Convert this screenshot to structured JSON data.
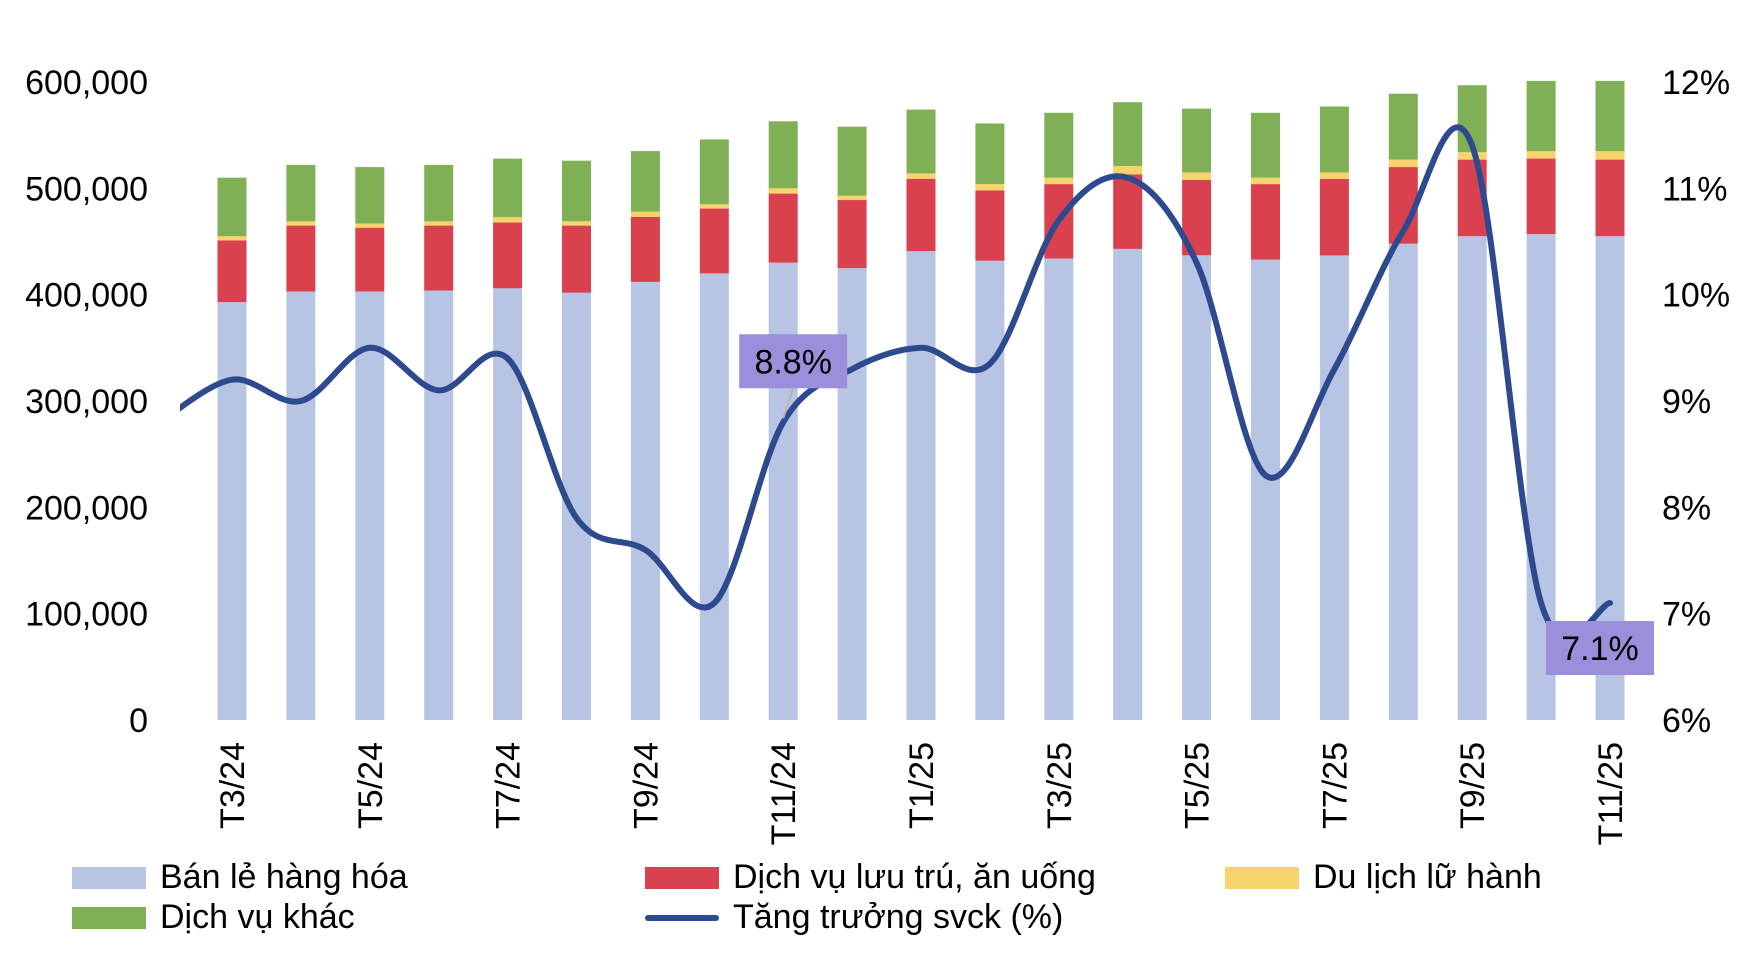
{
  "chart_data": {
    "type": "bar",
    "stacked": true,
    "categories": [
      "T3/24",
      "T4/24",
      "T5/24",
      "T6/24",
      "T7/24",
      "T8/24",
      "T9/24",
      "T10/24",
      "T11/24",
      "T12/24",
      "T1/25",
      "T2/25",
      "T3/25",
      "T4/25",
      "T5/25",
      "T6/25",
      "T7/25",
      "T8/25",
      "T9/25",
      "T10/25",
      "T11/25"
    ],
    "tick_labels": [
      "T3/24",
      "",
      "T5/24",
      "",
      "T7/24",
      "",
      "T9/24",
      "",
      "T11/24",
      "",
      "T1/25",
      "",
      "T3/25",
      "",
      "T5/25",
      "",
      "T7/25",
      "",
      "T9/25",
      "",
      "T11/25"
    ],
    "series": [
      {
        "name": "Bán lẻ hàng hóa",
        "color": "#b8c4e4",
        "values": [
          393000,
          403000,
          403000,
          404000,
          406000,
          402000,
          412000,
          420000,
          430000,
          425000,
          441000,
          432000,
          434000,
          443000,
          437000,
          433000,
          437000,
          448000,
          455000,
          457000,
          455000
        ]
      },
      {
        "name": "Dịch vụ lưu trú, ăn uống",
        "color": "#d9414f",
        "values": [
          58000,
          62000,
          60000,
          61000,
          62000,
          63000,
          61000,
          61000,
          65000,
          64000,
          68000,
          66000,
          70000,
          70000,
          71000,
          71000,
          72000,
          72000,
          72000,
          71000,
          72000
        ]
      },
      {
        "name": "Du lịch lữ hành",
        "color": "#f6d36b",
        "values": [
          4000,
          4000,
          4000,
          4000,
          5000,
          4000,
          5000,
          4000,
          5000,
          4000,
          5000,
          6000,
          6000,
          8000,
          7000,
          6000,
          6000,
          7000,
          7000,
          7000,
          8000
        ]
      },
      {
        "name": "Dịch vụ khác",
        "color": "#7fb055",
        "values": [
          55000,
          53000,
          53000,
          53000,
          55000,
          57000,
          57000,
          61000,
          63000,
          65000,
          60000,
          57000,
          61000,
          60000,
          60000,
          61000,
          62000,
          62000,
          63000,
          66000,
          66000
        ]
      }
    ],
    "line_series": {
      "name": "Tăng trưởng svck (%)",
      "color": "#2e4a8e",
      "values": [
        9.2,
        9.0,
        9.5,
        9.1,
        9.4,
        7.9,
        7.6,
        7.1,
        8.8,
        9.3,
        9.5,
        9.35,
        10.7,
        11.1,
        10.3,
        8.3,
        9.3,
        10.6,
        11.4,
        7.1,
        7.1
      ],
      "start_value": 8.8
    },
    "annotations": [
      {
        "label": "8.8%",
        "category": "T11/24",
        "color": "#9b8fdb"
      },
      {
        "label": "7.1%",
        "category": "T11/25",
        "color": "#9b8fdb"
      }
    ],
    "y_left": {
      "ticks": [
        "0",
        "100,000",
        "200,000",
        "300,000",
        "400,000",
        "500,000",
        "600,000"
      ],
      "min": 0,
      "max": 600000
    },
    "y_right": {
      "ticks": [
        "6%",
        "7%",
        "8%",
        "9%",
        "10%",
        "11%",
        "12%"
      ],
      "min": 6,
      "max": 12
    },
    "grid": false,
    "legend_position": "bottom"
  }
}
